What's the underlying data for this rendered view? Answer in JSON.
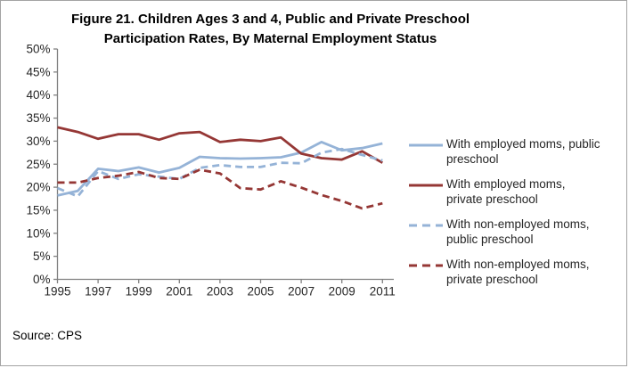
{
  "figure": {
    "title_line1": "Figure 21. Children Ages 3 and 4, Public and Private Preschool",
    "title_line2": "Participation Rates, By Maternal Employment Status",
    "source": "Source: CPS"
  },
  "legend": {
    "items": [
      {
        "line1": "With employed moms, public",
        "line2": "preschool"
      },
      {
        "line1": "With employed moms,",
        "line2": "private preschool"
      },
      {
        "line1": "With non-employed moms,",
        "line2": "public preschool"
      },
      {
        "line1": "With non-employed moms,",
        "line2": "private preschool"
      }
    ]
  },
  "colors": {
    "public_blue": "#95B3D7",
    "private_red": "#953735",
    "axis": "#808080",
    "tick_text": "#262626"
  },
  "chart_data": {
    "type": "line",
    "title": "Figure 21. Children Ages 3 and 4, Public and Private Preschool Participation Rates, By Maternal Employment Status",
    "xlabel": "",
    "ylabel": "",
    "grid": false,
    "legend_position": "right",
    "ylim": [
      0,
      50
    ],
    "ytick_labels": [
      "0%",
      "5%",
      "10%",
      "15%",
      "20%",
      "25%",
      "30%",
      "35%",
      "40%",
      "45%",
      "50%"
    ],
    "x": [
      1995,
      1996,
      1997,
      1998,
      1999,
      2000,
      2001,
      2002,
      2003,
      2004,
      2005,
      2006,
      2007,
      2008,
      2009,
      2010,
      2011
    ],
    "xtick_labels": [
      "1995",
      "1997",
      "1999",
      "2001",
      "2003",
      "2005",
      "2007",
      "2009",
      "2011"
    ],
    "series": [
      {
        "name": "With employed moms, public preschool",
        "color": "#95B3D7",
        "dash": "solid",
        "values": [
          18.2,
          19.2,
          24.0,
          23.5,
          24.3,
          23.2,
          24.2,
          26.6,
          26.3,
          26.2,
          26.3,
          26.5,
          27.5,
          29.8,
          28.0,
          28.5,
          29.5
        ]
      },
      {
        "name": "With employed moms, private preschool",
        "color": "#953735",
        "dash": "solid",
        "values": [
          33.0,
          32.0,
          30.5,
          31.5,
          31.5,
          30.3,
          31.7,
          32.0,
          29.8,
          30.3,
          30.0,
          30.8,
          27.3,
          26.3,
          26.0,
          27.8,
          25.3
        ]
      },
      {
        "name": "With non-employed moms, public preschool",
        "color": "#95B3D7",
        "dash": "dashed",
        "values": [
          19.8,
          18.0,
          23.5,
          21.8,
          22.8,
          22.3,
          21.8,
          24.2,
          24.8,
          24.4,
          24.4,
          25.3,
          25.2,
          27.5,
          28.3,
          27.0,
          25.8
        ]
      },
      {
        "name": "With non-employed moms, private preschool",
        "color": "#953735",
        "dash": "dashed",
        "values": [
          21.0,
          21.0,
          22.0,
          22.5,
          23.3,
          22.0,
          21.8,
          23.8,
          23.0,
          19.8,
          19.5,
          21.3,
          19.9,
          18.3,
          17.0,
          15.4,
          16.5
        ]
      }
    ]
  }
}
